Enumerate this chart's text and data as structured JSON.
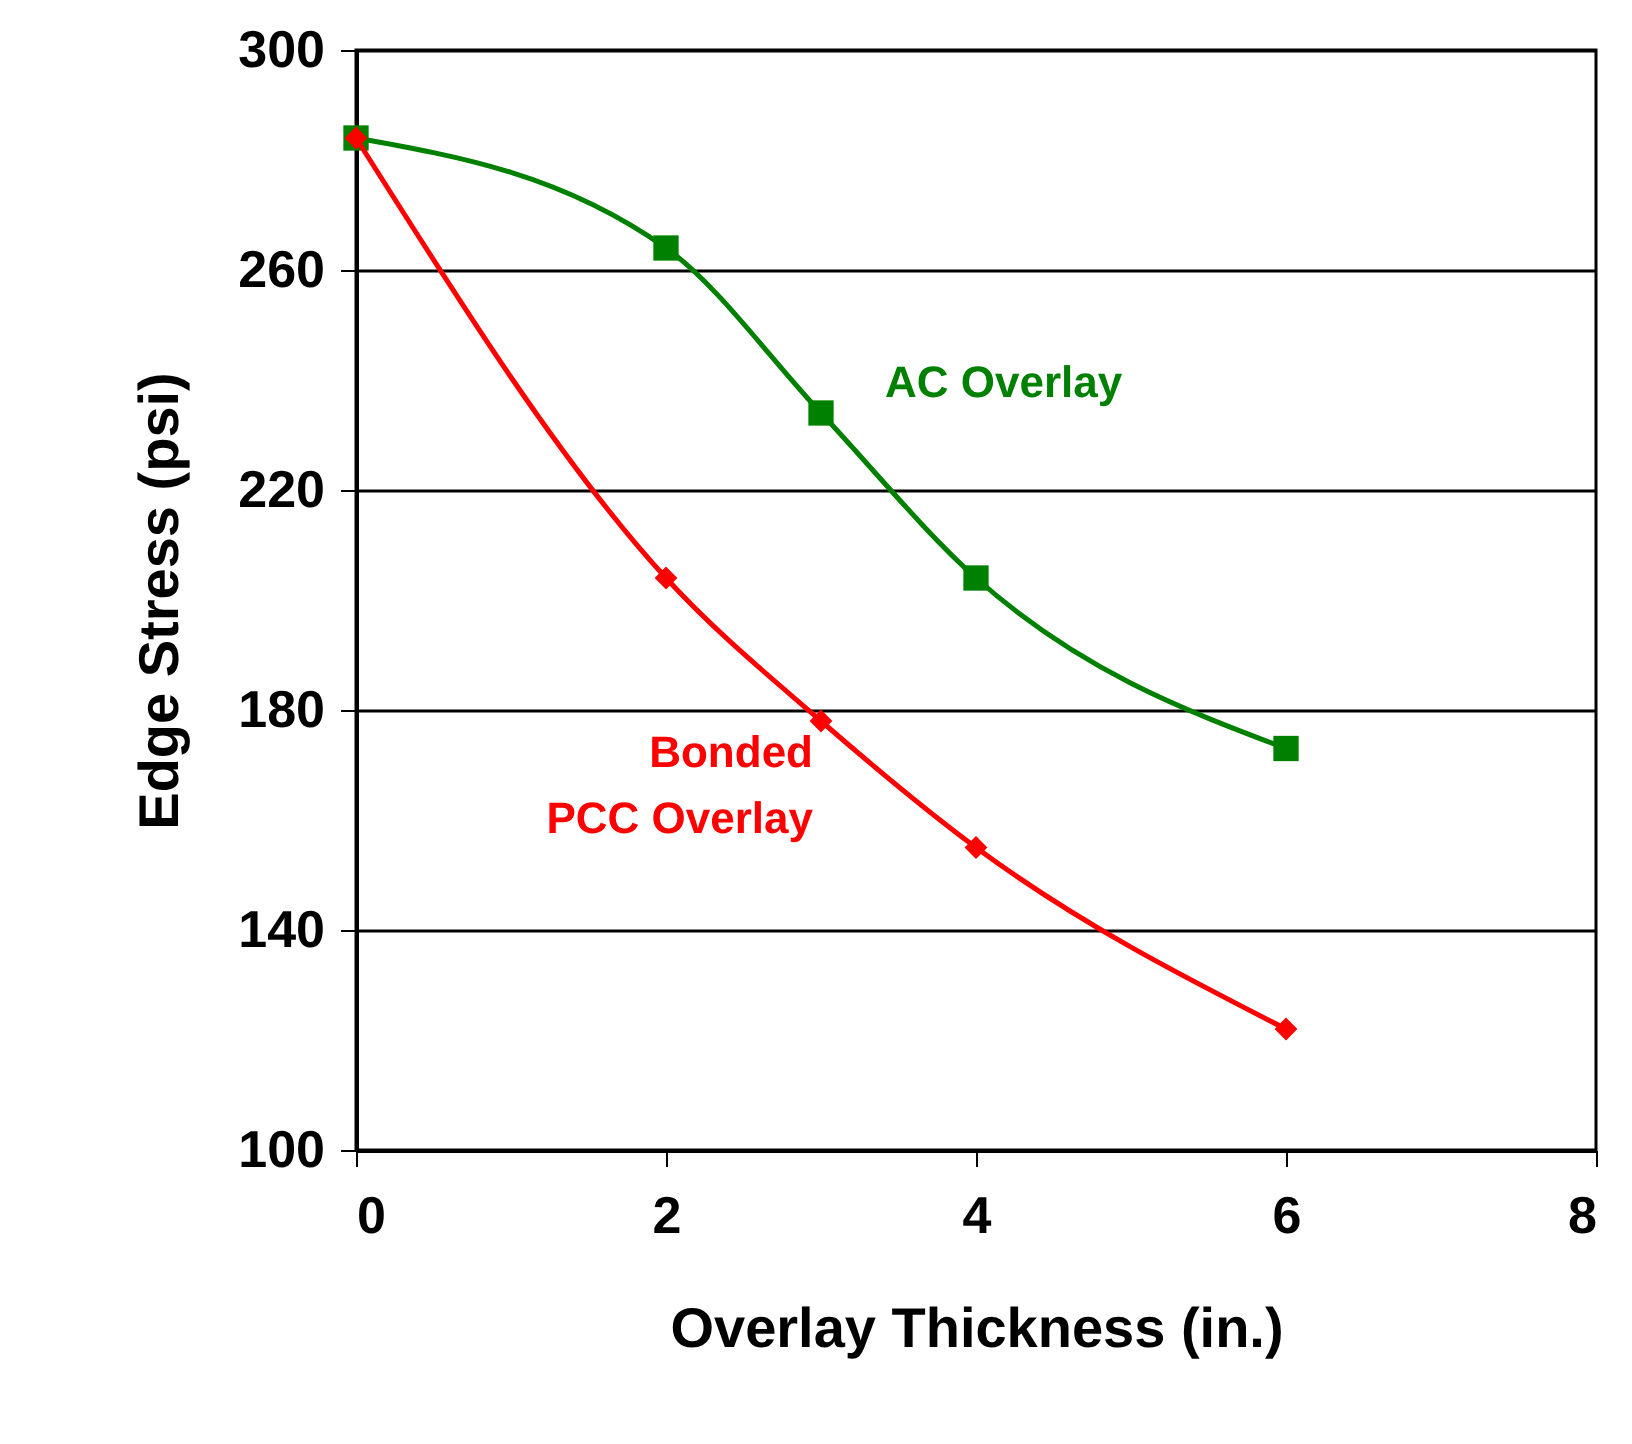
{
  "chart_data": {
    "type": "line",
    "xlabel": "Overlay Thickness (in.)",
    "ylabel": "Edge Stress (psi)",
    "xlim": [
      0,
      8
    ],
    "xticks": [
      0,
      2,
      4,
      6,
      8
    ],
    "ylim": [
      100,
      300
    ],
    "yticks": [
      100,
      140,
      180,
      220,
      260,
      300
    ],
    "grid": "y",
    "series": [
      {
        "name": "AC Overlay",
        "color": "#008000",
        "marker": "square",
        "x": [
          0,
          2,
          3,
          4,
          6
        ],
        "values": [
          284,
          264,
          234,
          204,
          173
        ]
      },
      {
        "name": "Bonded PCC Overlay",
        "color": "#ff0000",
        "marker": "diamond",
        "x": [
          0,
          2,
          3,
          4,
          6
        ],
        "values": [
          284,
          204,
          178,
          155,
          122
        ]
      }
    ]
  }
}
